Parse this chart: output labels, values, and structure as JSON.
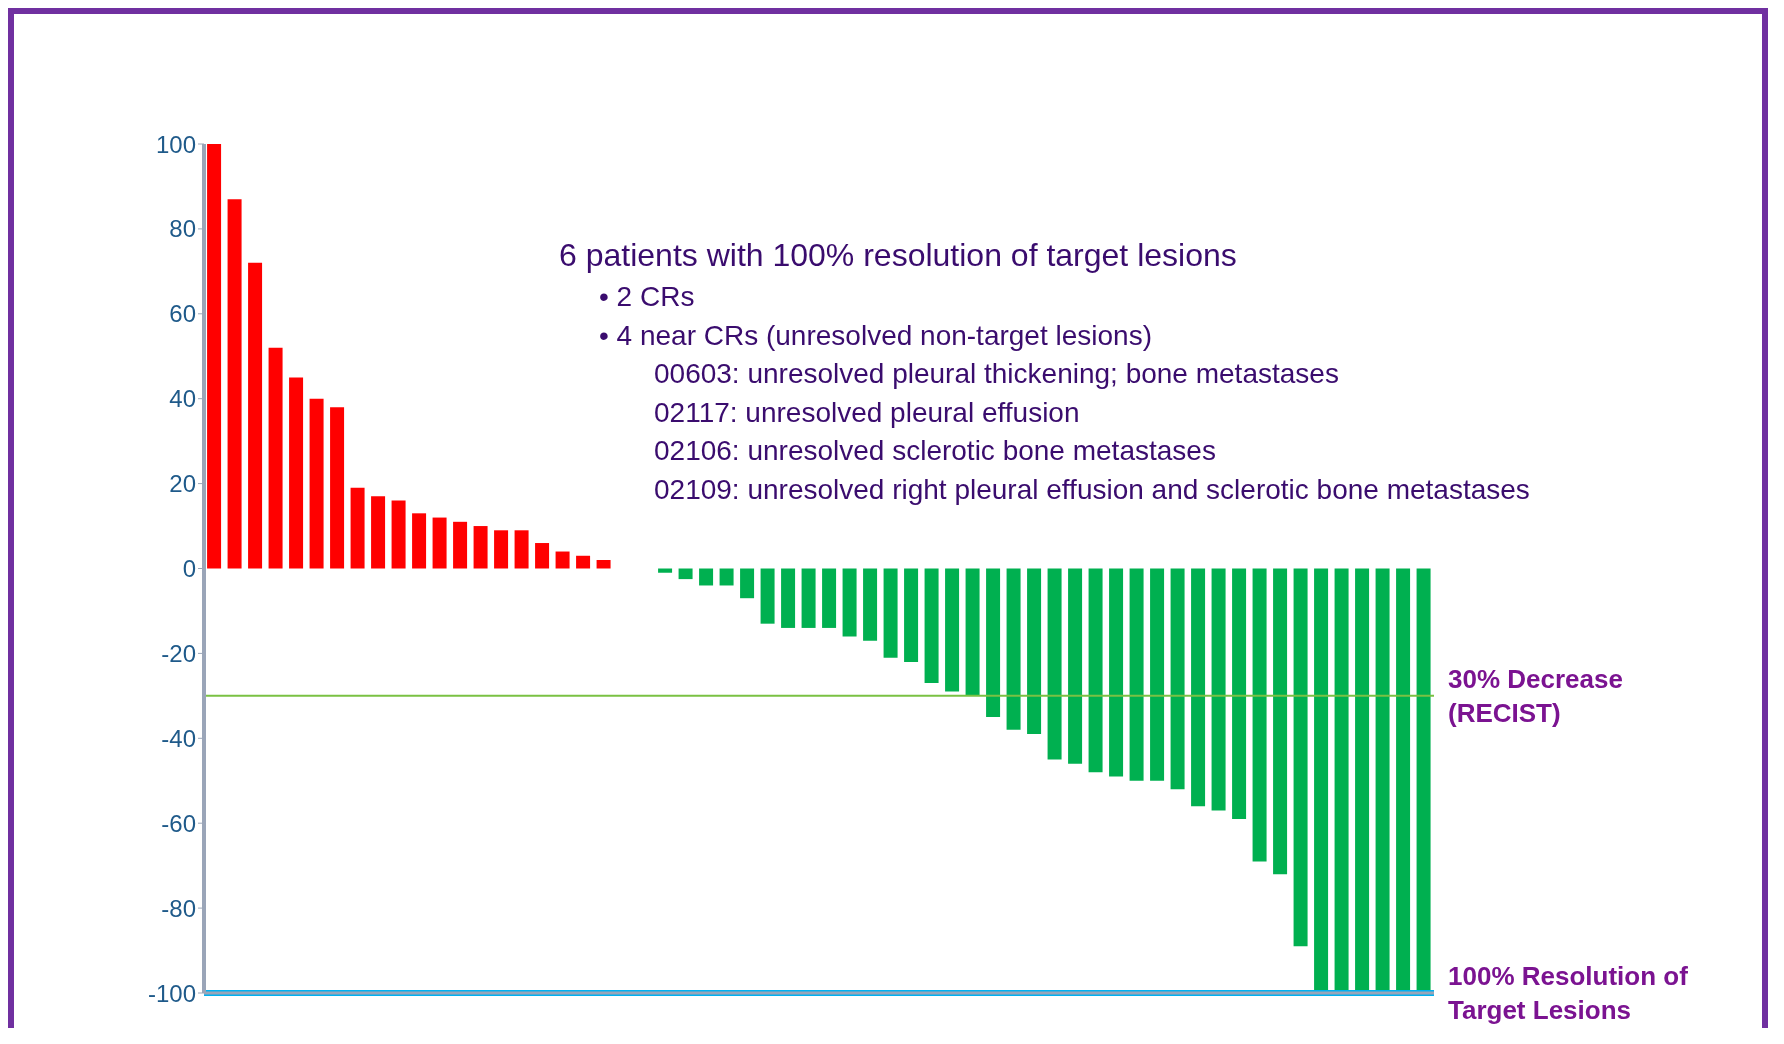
{
  "chart_data": {
    "type": "bar",
    "categories": [
      null,
      null,
      null,
      null,
      null,
      null,
      null,
      null,
      null,
      null,
      null,
      null,
      null,
      null,
      null,
      null,
      null,
      null,
      null,
      null,
      null,
      null,
      null,
      null,
      null,
      null,
      null,
      null,
      null,
      null,
      null,
      null,
      null,
      null,
      null,
      null,
      null,
      null,
      null,
      null,
      null,
      null,
      null,
      null,
      null,
      null,
      null,
      null,
      null,
      null,
      null,
      null,
      null,
      null,
      null,
      null,
      null,
      null,
      null,
      null
    ],
    "values": [
      100,
      87,
      72,
      52,
      45,
      40,
      38,
      19,
      17,
      16,
      13,
      12,
      11,
      10,
      9,
      9,
      6,
      4,
      3,
      2,
      0,
      0,
      -1,
      -2.5,
      -4,
      -4,
      -7,
      -13,
      -14,
      -14,
      -14,
      -16,
      -17,
      -21,
      -22,
      -27,
      -29,
      -30,
      -35,
      -38,
      -39,
      -45,
      -46,
      -48,
      -49,
      -50,
      -50,
      -52,
      -56,
      -57,
      -59,
      -69,
      -72,
      -89,
      -100,
      -100,
      -100,
      -100,
      -100,
      -100
    ],
    "colors": [
      "#ff0000",
      "#ff0000",
      "#ff0000",
      "#ff0000",
      "#ff0000",
      "#ff0000",
      "#ff0000",
      "#ff0000",
      "#ff0000",
      "#ff0000",
      "#ff0000",
      "#ff0000",
      "#ff0000",
      "#ff0000",
      "#ff0000",
      "#ff0000",
      "#ff0000",
      "#ff0000",
      "#ff0000",
      "#ff0000",
      "#ff0000",
      "#ff0000",
      "#00b050",
      "#00b050",
      "#00b050",
      "#00b050",
      "#00b050",
      "#00b050",
      "#00b050",
      "#00b050",
      "#00b050",
      "#00b050",
      "#00b050",
      "#00b050",
      "#00b050",
      "#00b050",
      "#00b050",
      "#00b050",
      "#00b050",
      "#00b050",
      "#00b050",
      "#00b050",
      "#00b050",
      "#00b050",
      "#00b050",
      "#00b050",
      "#00b050",
      "#00b050",
      "#00b050",
      "#00b050",
      "#00b050",
      "#00b050",
      "#00b050",
      "#00b050",
      "#00b050",
      "#00b050",
      "#00b050",
      "#00b050",
      "#00b050",
      "#00b050"
    ],
    "ylim": [
      -100,
      100
    ],
    "yticks": [
      -100,
      -80,
      -60,
      -40,
      -20,
      0,
      20,
      40,
      60,
      80,
      100
    ],
    "tick_labels": "y",
    "ref_lines": [
      {
        "axis": "y",
        "value": -30,
        "label": "30% Decrease (RECIST)",
        "color": "#7ac143"
      },
      {
        "axis": "y",
        "value": -100,
        "label": "100% Resolution of Target Lesions",
        "color": "#00b0f0"
      }
    ],
    "annotations": [
      "6 patients with 100% resolution of target lesions",
      "• 2 CRs",
      "• 4 near CRs (unresolved non-target lesions)",
      "00603: unresolved pleural thickening; bone metastases",
      "02117: unresolved pleural effusion",
      "02106: unresolved sclerotic bone metastases",
      "02109: unresolved right pleural effusion and sclerotic bone metastases"
    ]
  }
}
